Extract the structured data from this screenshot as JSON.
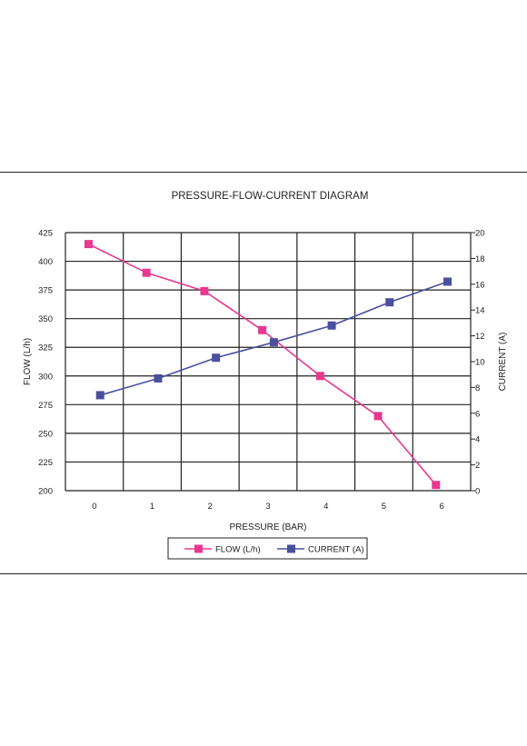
{
  "chart_data": {
    "type": "line",
    "title": "PRESSURE-FLOW-CURRENT DIAGRAM",
    "xlabel": "PRESSURE (BAR)",
    "ylabel_left": "FLOW (L/h)",
    "ylabel_right": "CURRENT (A)",
    "x_ticks": [
      "0",
      "1",
      "2",
      "3",
      "4",
      "5",
      "6"
    ],
    "y_left_ticks": [
      "200",
      "225",
      "250",
      "275",
      "300",
      "325",
      "350",
      "375",
      "400",
      "425"
    ],
    "y_right_ticks": [
      "0",
      "2",
      "4",
      "6",
      "8",
      "10",
      "12",
      "14",
      "16",
      "18",
      "20"
    ],
    "xlim": [
      -0.5,
      6.5
    ],
    "ylim_left": [
      200,
      425
    ],
    "ylim_right": [
      0,
      20
    ],
    "grid": true,
    "legend_position": "bottom-center",
    "series": [
      {
        "name": "FLOW (L/h)",
        "axis": "left",
        "color": "#e8388f",
        "marker": "square",
        "x": [
          -0.1,
          0.9,
          1.9,
          2.9,
          3.9,
          4.9,
          5.9
        ],
        "values": [
          415,
          390,
          374,
          340,
          300,
          265,
          205
        ]
      },
      {
        "name": "CURRENT (A)",
        "axis": "right",
        "color": "#4a4f9e",
        "marker": "square",
        "x": [
          0.1,
          1.1,
          2.1,
          3.1,
          4.1,
          5.1,
          6.1
        ],
        "values": [
          7.4,
          8.7,
          10.3,
          11.5,
          12.8,
          14.6,
          16.2
        ]
      }
    ]
  }
}
